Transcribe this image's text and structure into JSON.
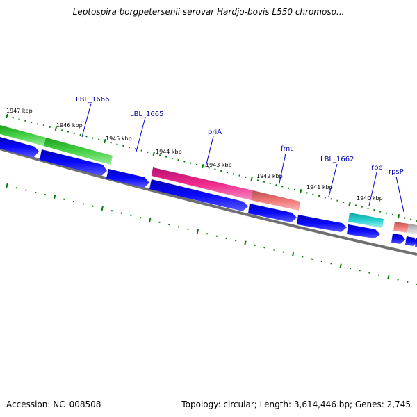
{
  "title": "Leptospira borgpetersenii serovar Hardjo-bovis L550 chromoso...",
  "footer": {
    "accession": "Accession: NC_008508",
    "summary": "Topology: circular; Length: 3,614,446 bp; Genes: 2,745"
  },
  "colors": {
    "cds_arrow": "#0000e6",
    "backbone": "#808080",
    "tick": "#008000",
    "label_line": "#0000cc",
    "gene_label": "#0000aa"
  },
  "kbp_labels": [
    "1947 kbp",
    "1946 kbp",
    "1945 kbp",
    "1944 kbp",
    "1943 kbp",
    "1942 kbp",
    "1941 kbp",
    "1940 kbp"
  ],
  "genes": [
    {
      "label": "",
      "color": "#3cc83c"
    },
    {
      "label": "LBL_1666",
      "color": "#3cc83c"
    },
    {
      "label": "LBL_1665",
      "color": "#ffffff"
    },
    {
      "label": "priA",
      "color": "#e61e8c"
    },
    {
      "label": "fmt",
      "color": "#e67878"
    },
    {
      "label": "LBL_1662",
      "color": "#ffffff"
    },
    {
      "label": "rpe",
      "color": "#28c8c8"
    },
    {
      "label": "rpsP",
      "color": "#e67878"
    }
  ]
}
